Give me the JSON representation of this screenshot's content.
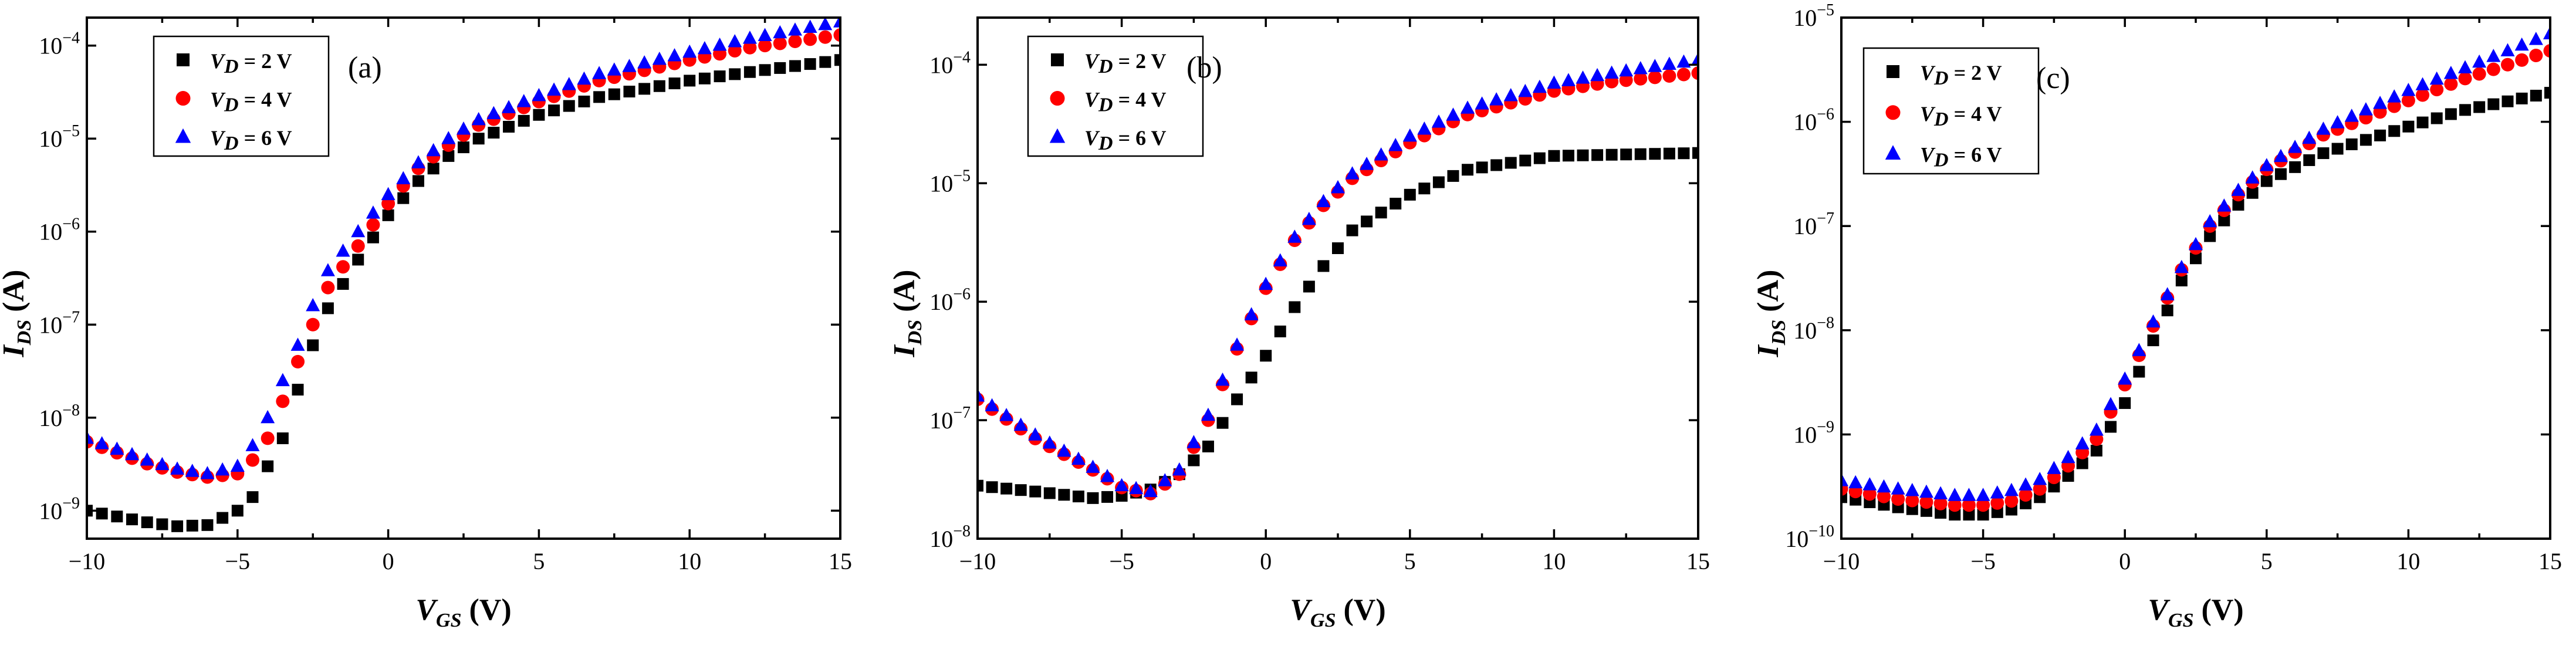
{
  "chart_data": [
    {
      "type": "scatter",
      "panel_label": "(a)",
      "xlabel": {
        "var": "V",
        "sub": "GS",
        "unit": " (V)"
      },
      "ylabel": {
        "var": "I",
        "sub": "DS",
        "unit": " (A)"
      },
      "xlim": [
        -10,
        15
      ],
      "ylim": [
        5e-10,
        0.0002
      ],
      "yscale": "log",
      "x_ticks": [
        -10,
        -5,
        0,
        5,
        10,
        15
      ],
      "x_tick_labels": [
        "−10",
        "−5",
        "0",
        "5",
        "10",
        "15"
      ],
      "y_ticks": [
        {
          "base": "10",
          "exp": "−9",
          "value": 1e-09
        },
        {
          "base": "10",
          "exp": "−8",
          "value": 1e-08
        },
        {
          "base": "10",
          "exp": "−7",
          "value": 1e-07
        },
        {
          "base": "10",
          "exp": "−6",
          "value": 1e-06
        },
        {
          "base": "10",
          "exp": "−5",
          "value": 1e-05
        },
        {
          "base": "10",
          "exp": "−4",
          "value": 0.0001
        }
      ],
      "legend_position": "top-left",
      "series": [
        {
          "name": "VD = 2 V",
          "legend": {
            "var": "V",
            "sub": "D",
            "rest": " = 2 V"
          },
          "marker": "square",
          "color": "#000000",
          "anchors": [
            [
              -10,
              1e-09
            ],
            [
              -8,
              7.5e-10
            ],
            [
              -7,
              6.8e-10
            ],
            [
              -6,
              7e-10
            ],
            [
              -5,
              1e-09
            ],
            [
              -4.5,
              1.4e-09
            ],
            [
              -4,
              3e-09
            ],
            [
              -3.5,
              6e-09
            ],
            [
              -3,
              2e-08
            ],
            [
              -2.5,
              6e-08
            ],
            [
              -2,
              1.5e-07
            ],
            [
              -1,
              5e-07
            ],
            [
              0,
              1.5e-06
            ],
            [
              1,
              3.5e-06
            ],
            [
              2,
              6.5e-06
            ],
            [
              3,
              1e-05
            ],
            [
              5,
              1.8e-05
            ],
            [
              7,
              2.8e-05
            ],
            [
              10,
              4.2e-05
            ],
            [
              12,
              5.2e-05
            ],
            [
              15,
              7e-05
            ]
          ]
        },
        {
          "name": "VD = 4 V",
          "legend": {
            "var": "V",
            "sub": "D",
            "rest": " = 4 V"
          },
          "marker": "circle",
          "color": "#ff0000",
          "anchors": [
            [
              -10,
              5.5e-09
            ],
            [
              -8,
              3.2e-09
            ],
            [
              -7,
              2.6e-09
            ],
            [
              -6,
              2.3e-09
            ],
            [
              -5,
              2.5e-09
            ],
            [
              -4.5,
              3.5e-09
            ],
            [
              -4,
              6e-09
            ],
            [
              -3.5,
              1.5e-08
            ],
            [
              -3,
              4e-08
            ],
            [
              -2.5,
              1e-07
            ],
            [
              -2,
              2.5e-07
            ],
            [
              -1,
              7e-07
            ],
            [
              0,
              2e-06
            ],
            [
              1,
              4.8e-06
            ],
            [
              2,
              8.5e-06
            ],
            [
              3,
              1.4e-05
            ],
            [
              5,
              2.5e-05
            ],
            [
              7,
              4.2e-05
            ],
            [
              10,
              7e-05
            ],
            [
              12,
              9.5e-05
            ],
            [
              15,
              0.00013
            ]
          ]
        },
        {
          "name": "VD = 6 V",
          "legend": {
            "var": "V",
            "sub": "D",
            "rest": " = 6 V"
          },
          "marker": "triangle",
          "color": "#0000ff",
          "anchors": [
            [
              -10,
              6e-09
            ],
            [
              -8,
              3.5e-09
            ],
            [
              -7,
              2.8e-09
            ],
            [
              -6,
              2.5e-09
            ],
            [
              -5,
              3e-09
            ],
            [
              -4.5,
              5e-09
            ],
            [
              -4,
              1e-08
            ],
            [
              -3.5,
              2.5e-08
            ],
            [
              -3,
              6e-08
            ],
            [
              -2.5,
              1.6e-07
            ],
            [
              -2,
              3.8e-07
            ],
            [
              -1,
              1e-06
            ],
            [
              0,
              2.5e-06
            ],
            [
              1,
              5.5e-06
            ],
            [
              2,
              1e-05
            ],
            [
              3,
              1.6e-05
            ],
            [
              5,
              2.9e-05
            ],
            [
              7,
              5e-05
            ],
            [
              10,
              8.5e-05
            ],
            [
              12,
              0.00012
            ],
            [
              15,
              0.00018
            ]
          ]
        }
      ]
    },
    {
      "type": "scatter",
      "panel_label": "(b)",
      "xlabel": {
        "var": "V",
        "sub": "GS",
        "unit": " (V)"
      },
      "ylabel": {
        "var": "I",
        "sub": "DS",
        "unit": " (A)"
      },
      "xlim": [
        -10,
        15
      ],
      "ylim": [
        1e-08,
        0.00025
      ],
      "yscale": "log",
      "x_ticks": [
        -10,
        -5,
        0,
        5,
        10,
        15
      ],
      "x_tick_labels": [
        "−10",
        "−5",
        "0",
        "5",
        "10",
        "15"
      ],
      "y_ticks": [
        {
          "base": "10",
          "exp": "−8",
          "value": 1e-08
        },
        {
          "base": "10",
          "exp": "−7",
          "value": 1e-07
        },
        {
          "base": "10",
          "exp": "−6",
          "value": 1e-06
        },
        {
          "base": "10",
          "exp": "−5",
          "value": 1e-05
        },
        {
          "base": "10",
          "exp": "−4",
          "value": 0.0001
        }
      ],
      "legend_position": "top-left",
      "series": [
        {
          "name": "VD = 2 V",
          "legend": {
            "var": "V",
            "sub": "D",
            "rest": " = 2 V"
          },
          "marker": "square",
          "color": "#000000",
          "anchors": [
            [
              -10,
              2.8e-08
            ],
            [
              -8,
              2.5e-08
            ],
            [
              -6,
              2.2e-08
            ],
            [
              -5,
              2.3e-08
            ],
            [
              -4,
              2.6e-08
            ],
            [
              -3,
              3.5e-08
            ],
            [
              -2,
              6e-08
            ],
            [
              -1,
              1.5e-07
            ],
            [
              0,
              3.5e-07
            ],
            [
              1,
              9e-07
            ],
            [
              2,
              2e-06
            ],
            [
              3,
              4e-06
            ],
            [
              5,
              8e-06
            ],
            [
              7,
              1.3e-05
            ],
            [
              10,
              1.7e-05
            ],
            [
              15,
              1.8e-05
            ]
          ]
        },
        {
          "name": "VD = 4 V",
          "legend": {
            "var": "V",
            "sub": "D",
            "rest": " = 4 V"
          },
          "marker": "circle",
          "color": "#ff0000",
          "anchors": [
            [
              -10,
              1.5e-07
            ],
            [
              -8,
              7e-08
            ],
            [
              -6,
              3.8e-08
            ],
            [
              -5,
              2.7e-08
            ],
            [
              -4,
              2.4e-08
            ],
            [
              -3,
              3.5e-08
            ],
            [
              -2,
              1e-07
            ],
            [
              -1,
              4e-07
            ],
            [
              0,
              1.3e-06
            ],
            [
              1,
              3.3e-06
            ],
            [
              2,
              6.5e-06
            ],
            [
              3,
              1.1e-05
            ],
            [
              5,
              2.2e-05
            ],
            [
              7,
              3.8e-05
            ],
            [
              10,
              6e-05
            ],
            [
              12,
              7.2e-05
            ],
            [
              15,
              8.5e-05
            ]
          ]
        },
        {
          "name": "VD = 6 V",
          "legend": {
            "var": "V",
            "sub": "D",
            "rest": " = 6 V"
          },
          "marker": "triangle",
          "color": "#0000ff",
          "anchors": [
            [
              -10,
              1.6e-07
            ],
            [
              -8,
              7.5e-08
            ],
            [
              -6,
              4e-08
            ],
            [
              -5,
              2.8e-08
            ],
            [
              -4,
              2.5e-08
            ],
            [
              -3,
              3.8e-08
            ],
            [
              -2,
              1.1e-07
            ],
            [
              -1,
              4.3e-07
            ],
            [
              0,
              1.4e-06
            ],
            [
              1,
              3.5e-06
            ],
            [
              2,
              7e-06
            ],
            [
              3,
              1.2e-05
            ],
            [
              5,
              2.5e-05
            ],
            [
              7,
              4.3e-05
            ],
            [
              10,
              7e-05
            ],
            [
              12,
              8.5e-05
            ],
            [
              15,
              0.00011
            ]
          ]
        }
      ]
    },
    {
      "type": "scatter",
      "panel_label": "(c)",
      "xlabel": {
        "var": "V",
        "sub": "GS",
        "unit": " (V)"
      },
      "ylabel": {
        "var": "I",
        "sub": "DS",
        "unit": " (A)"
      },
      "xlim": [
        -10,
        15
      ],
      "ylim": [
        1e-10,
        1e-05
      ],
      "yscale": "log",
      "x_ticks": [
        -10,
        -5,
        0,
        5,
        10,
        15
      ],
      "x_tick_labels": [
        "−10",
        "−5",
        "0",
        "5",
        "10",
        "15"
      ],
      "y_ticks": [
        {
          "base": "10",
          "exp": "−10",
          "value": 1e-10
        },
        {
          "base": "10",
          "exp": "−9",
          "value": 1e-09
        },
        {
          "base": "10",
          "exp": "−8",
          "value": 1e-08
        },
        {
          "base": "10",
          "exp": "−7",
          "value": 1e-07
        },
        {
          "base": "10",
          "exp": "−6",
          "value": 1e-06
        },
        {
          "base": "10",
          "exp": "−5",
          "value": 1e-05
        }
      ],
      "legend_position": "top-left",
      "series": [
        {
          "name": "VD = 2 V",
          "legend": {
            "var": "V",
            "sub": "D",
            "rest": " = 2 V"
          },
          "marker": "square",
          "color": "#000000",
          "anchors": [
            [
              -10,
              2.5e-10
            ],
            [
              -8,
              2e-10
            ],
            [
              -6,
              1.7e-10
            ],
            [
              -5,
              1.7e-10
            ],
            [
              -4,
              1.9e-10
            ],
            [
              -3,
              2.5e-10
            ],
            [
              -2,
              4e-10
            ],
            [
              -1,
              7e-10
            ],
            [
              0,
              2e-09
            ],
            [
              1,
              8e-09
            ],
            [
              2,
              3e-08
            ],
            [
              3,
              8e-08
            ],
            [
              4,
              1.6e-07
            ],
            [
              5,
              2.7e-07
            ],
            [
              7,
              5e-07
            ],
            [
              10,
              9e-07
            ],
            [
              12,
              1.3e-06
            ],
            [
              15,
              1.9e-06
            ]
          ]
        },
        {
          "name": "VD = 4 V",
          "legend": {
            "var": "V",
            "sub": "D",
            "rest": " = 4 V"
          },
          "marker": "circle",
          "color": "#ff0000",
          "anchors": [
            [
              -10,
              3e-10
            ],
            [
              -8,
              2.4e-10
            ],
            [
              -6,
              2.1e-10
            ],
            [
              -5,
              2.1e-10
            ],
            [
              -4,
              2.3e-10
            ],
            [
              -3,
              3e-10
            ],
            [
              -2,
              5e-10
            ],
            [
              -1,
              9e-10
            ],
            [
              0,
              3e-09
            ],
            [
              1,
              1.1e-08
            ],
            [
              2,
              3.8e-08
            ],
            [
              3,
              1e-07
            ],
            [
              4,
              2e-07
            ],
            [
              5,
              3.5e-07
            ],
            [
              7,
              7.5e-07
            ],
            [
              10,
              1.6e-06
            ],
            [
              12,
              2.6e-06
            ],
            [
              15,
              4.8e-06
            ]
          ]
        },
        {
          "name": "VD = 6 V",
          "legend": {
            "var": "V",
            "sub": "D",
            "rest": " = 6 V"
          },
          "marker": "triangle",
          "color": "#0000ff",
          "anchors": [
            [
              -10,
              3.6e-10
            ],
            [
              -8,
              3e-10
            ],
            [
              -6,
              2.6e-10
            ],
            [
              -5,
              2.6e-10
            ],
            [
              -4,
              2.9e-10
            ],
            [
              -3,
              3.7e-10
            ],
            [
              -2,
              6e-10
            ],
            [
              -1,
              1.1e-09
            ],
            [
              0,
              3.4e-09
            ],
            [
              1,
              1.2e-08
            ],
            [
              2,
              4e-08
            ],
            [
              3,
              1.1e-07
            ],
            [
              4,
              2.2e-07
            ],
            [
              5,
              3.8e-07
            ],
            [
              7,
              8.5e-07
            ],
            [
              10,
              2e-06
            ],
            [
              12,
              3.3e-06
            ],
            [
              15,
              7e-06
            ]
          ]
        }
      ]
    }
  ]
}
